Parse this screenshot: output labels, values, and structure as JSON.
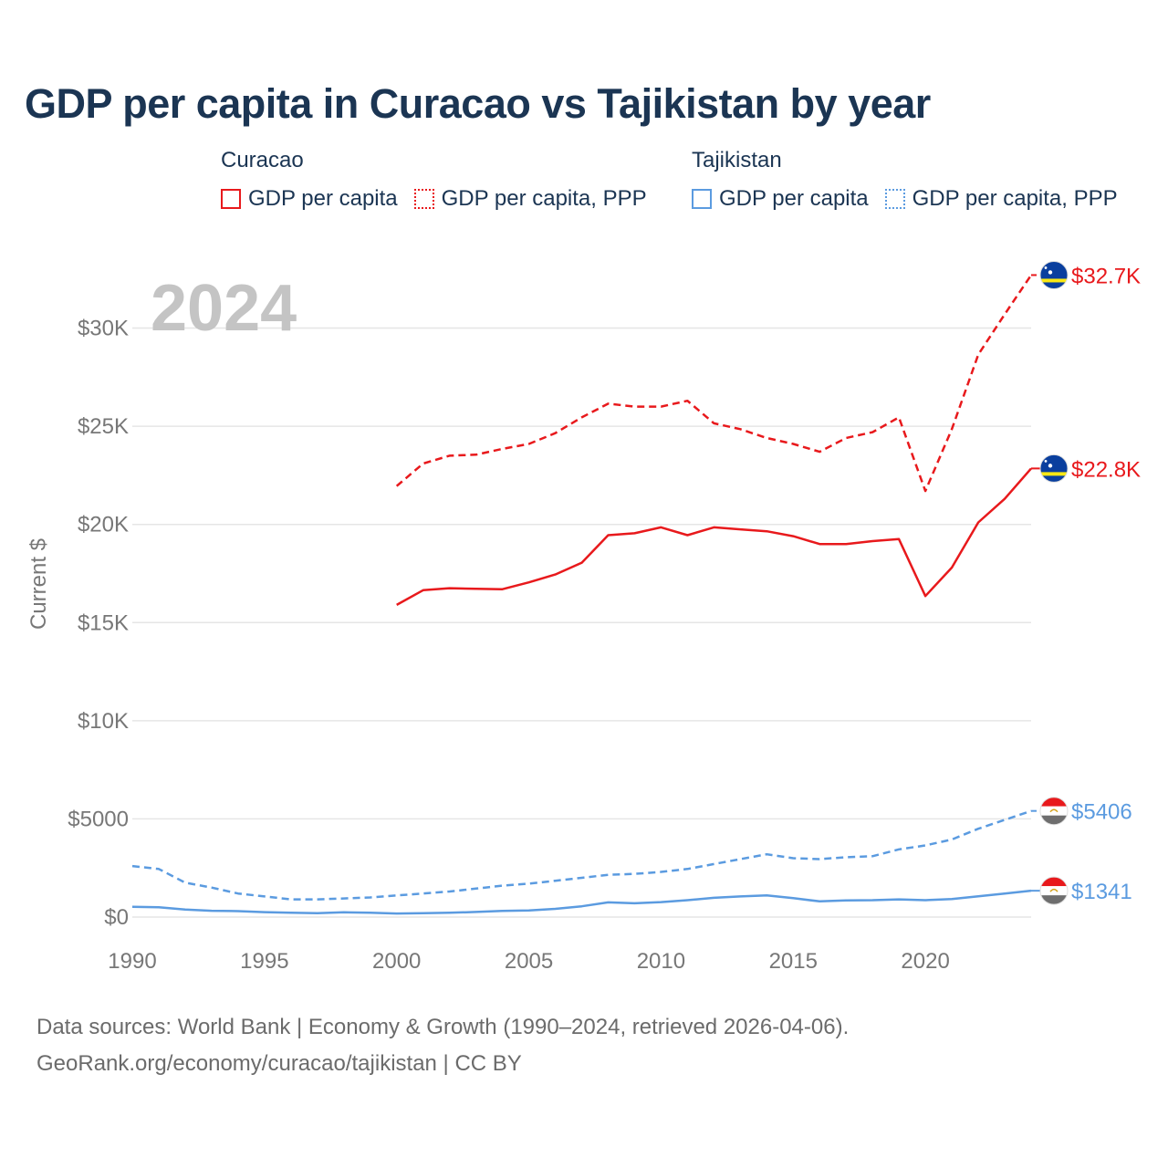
{
  "header": {
    "title": "GDP per capita in Curacao vs Tajikistan by year"
  },
  "legend": {
    "groups": [
      {
        "name": "Curacao",
        "color": "#e8191c",
        "items": [
          {
            "label": "GDP per capita",
            "style": "solid"
          },
          {
            "label": "GDP per capita, PPP",
            "style": "dotted"
          }
        ]
      },
      {
        "name": "Tajikistan",
        "color": "#5b9be0",
        "items": [
          {
            "label": "GDP per capita",
            "style": "solid"
          },
          {
            "label": "GDP per capita, PPP",
            "style": "dotted"
          }
        ]
      }
    ]
  },
  "chart_data": {
    "type": "line",
    "year_watermark": "2024",
    "ylabel": "Current $",
    "xlim": [
      1990,
      2024
    ],
    "ylim": [
      0,
      33000
    ],
    "x_ticks": [
      1990,
      1995,
      2000,
      2005,
      2010,
      2015,
      2020
    ],
    "y_ticks": [
      {
        "value": 0,
        "label": "$0"
      },
      {
        "value": 5000,
        "label": "$5000"
      },
      {
        "value": 10000,
        "label": "$10K"
      },
      {
        "value": 15000,
        "label": "$15K"
      },
      {
        "value": 20000,
        "label": "$20K"
      },
      {
        "value": 25000,
        "label": "$25K"
      },
      {
        "value": 30000,
        "label": "$30K"
      }
    ],
    "series": [
      {
        "name": "Curacao GDP per capita, PPP",
        "country": "Curacao",
        "color": "#e8191c",
        "dash": "dashed",
        "end_label": "$32.7K",
        "flag": "curacao",
        "x": [
          2000,
          2001,
          2002,
          2003,
          2004,
          2005,
          2006,
          2007,
          2008,
          2009,
          2010,
          2011,
          2012,
          2013,
          2014,
          2015,
          2016,
          2017,
          2018,
          2019,
          2020,
          2021,
          2022,
          2023,
          2024
        ],
        "y": [
          21950,
          23100,
          23500,
          23550,
          23850,
          24100,
          24650,
          25450,
          26150,
          26000,
          26000,
          26300,
          25150,
          24850,
          24400,
          24100,
          23700,
          24400,
          24700,
          25450,
          21700,
          24850,
          28650,
          30700,
          32700
        ]
      },
      {
        "name": "Curacao GDP per capita",
        "country": "Curacao",
        "color": "#e8191c",
        "dash": "solid",
        "end_label": "$22.8K",
        "flag": "curacao",
        "x": [
          2000,
          2001,
          2002,
          2003,
          2004,
          2005,
          2006,
          2007,
          2008,
          2009,
          2010,
          2011,
          2012,
          2013,
          2014,
          2015,
          2016,
          2017,
          2018,
          2019,
          2020,
          2021,
          2022,
          2023,
          2024
        ],
        "y": [
          15900,
          16650,
          16750,
          16720,
          16700,
          17050,
          17450,
          18050,
          19450,
          19550,
          19850,
          19450,
          19850,
          19750,
          19650,
          19400,
          19000,
          19000,
          19150,
          19250,
          16350,
          17800,
          20100,
          21300,
          22850
        ]
      },
      {
        "name": "Tajikistan GDP per capita, PPP",
        "country": "Tajikistan",
        "color": "#5b9be0",
        "dash": "dashed",
        "end_label": "$5406",
        "flag": "tajikistan",
        "x": [
          1990,
          1991,
          1992,
          1993,
          1994,
          1995,
          1996,
          1997,
          1998,
          1999,
          2000,
          2001,
          2002,
          2003,
          2004,
          2005,
          2006,
          2007,
          2008,
          2009,
          2010,
          2011,
          2012,
          2013,
          2014,
          2015,
          2016,
          2017,
          2018,
          2019,
          2020,
          2021,
          2022,
          2023,
          2024
        ],
        "y": [
          2600,
          2450,
          1750,
          1500,
          1200,
          1050,
          900,
          900,
          950,
          1000,
          1100,
          1200,
          1300,
          1450,
          1600,
          1700,
          1850,
          2000,
          2150,
          2200,
          2300,
          2450,
          2700,
          2950,
          3200,
          3000,
          2950,
          3050,
          3100,
          3450,
          3650,
          3950,
          4500,
          4950,
          5406
        ]
      },
      {
        "name": "Tajikistan GDP per capita",
        "country": "Tajikistan",
        "color": "#5b9be0",
        "dash": "solid",
        "end_label": "$1341",
        "flag": "tajikistan",
        "x": [
          1990,
          1991,
          1992,
          1993,
          1994,
          1995,
          1996,
          1997,
          1998,
          1999,
          2000,
          2001,
          2002,
          2003,
          2004,
          2005,
          2006,
          2007,
          2008,
          2009,
          2010,
          2011,
          2012,
          2013,
          2014,
          2015,
          2016,
          2017,
          2018,
          2019,
          2020,
          2021,
          2022,
          2023,
          2024
        ],
        "y": [
          520,
          500,
          380,
          320,
          300,
          250,
          220,
          200,
          240,
          220,
          180,
          200,
          220,
          260,
          310,
          340,
          420,
          550,
          750,
          700,
          760,
          860,
          980,
          1050,
          1100,
          960,
          800,
          850,
          860,
          900,
          860,
          920,
          1060,
          1200,
          1341
        ]
      }
    ]
  },
  "footer": {
    "line1": "Data sources: World Bank | Economy & Growth (1990–2024, retrieved 2026-04-06).",
    "line2": "GeoRank.org/economy/curacao/tajikistan | CC BY"
  }
}
